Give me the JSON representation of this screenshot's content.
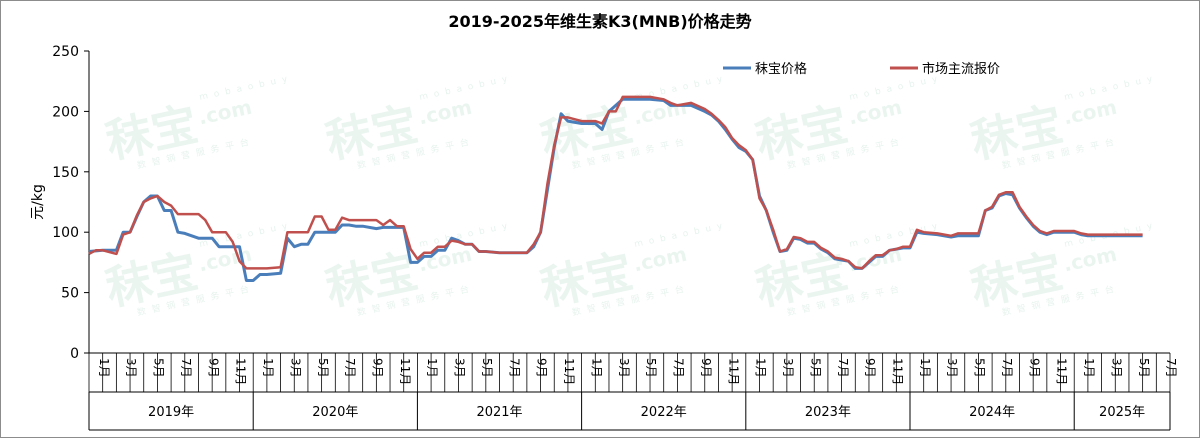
{
  "chart_data": {
    "type": "line",
    "title": "2019-2025年维生素K3(MNB)价格走势",
    "ylabel": "元/kg",
    "xlabel": "",
    "ylim": [
      0,
      250
    ],
    "yticks": [
      "0",
      "50",
      "100",
      "150",
      "200",
      "250"
    ],
    "grid": false,
    "legend_position": "top-right",
    "x_start": "2019-01",
    "x_end": "2025-07",
    "month_labels": [
      "1月",
      "3月",
      "5月",
      "7月",
      "9月",
      "11月"
    ],
    "years": [
      "2019年",
      "2020年",
      "2021年",
      "2022年",
      "2023年",
      "2024年",
      "2025年"
    ],
    "series": [
      {
        "name": "秣宝价格",
        "color": "#4a7ebb",
        "points": [
          [
            "2019-01",
            84
          ],
          [
            "2019-02",
            85
          ],
          [
            "2019-03",
            85
          ],
          [
            "2019-03.5",
            100
          ],
          [
            "2019-04",
            100
          ],
          [
            "2019-04.5",
            113
          ],
          [
            "2019-05",
            125
          ],
          [
            "2019-05.5",
            130
          ],
          [
            "2019-06",
            130
          ],
          [
            "2019-06.5",
            118
          ],
          [
            "2019-07",
            118
          ],
          [
            "2019-07.5",
            100
          ],
          [
            "2019-08",
            99
          ],
          [
            "2019-09",
            95
          ],
          [
            "2019-10",
            95
          ],
          [
            "2019-10.5",
            88
          ],
          [
            "2019-11",
            88
          ],
          [
            "2019-12",
            88
          ],
          [
            "2019-12.5",
            60
          ],
          [
            "2020-01",
            60
          ],
          [
            "2020-01.5",
            65
          ],
          [
            "2020-02",
            65
          ],
          [
            "2020-03",
            66
          ],
          [
            "2020-03.5",
            95
          ],
          [
            "2020-04",
            88
          ],
          [
            "2020-04.5",
            90
          ],
          [
            "2020-05",
            90
          ],
          [
            "2020-05.5",
            100
          ],
          [
            "2020-06",
            100
          ],
          [
            "2020-07",
            100
          ],
          [
            "2020-07.5",
            106
          ],
          [
            "2020-08",
            106
          ],
          [
            "2020-08.5",
            105
          ],
          [
            "2020-09",
            105
          ],
          [
            "2020-10",
            103
          ],
          [
            "2020-10.5",
            104
          ],
          [
            "2020-11",
            104
          ],
          [
            "2020-12",
            104
          ],
          [
            "2020-12.5",
            75
          ],
          [
            "2021-01",
            75
          ],
          [
            "2021-01.5",
            80
          ],
          [
            "2021-02",
            80
          ],
          [
            "2021-02.5",
            85
          ],
          [
            "2021-03",
            85
          ],
          [
            "2021-03.5",
            95
          ],
          [
            "2021-04",
            93
          ],
          [
            "2021-04.5",
            90
          ],
          [
            "2021-05",
            90
          ],
          [
            "2021-05.5",
            84
          ],
          [
            "2021-06",
            84
          ],
          [
            "2021-07",
            83
          ],
          [
            "2021-08",
            83
          ],
          [
            "2021-09",
            83
          ],
          [
            "2021-09.5",
            88
          ],
          [
            "2021-10",
            100
          ],
          [
            "2021-10.5",
            135
          ],
          [
            "2021-11",
            170
          ],
          [
            "2021-11.5",
            198
          ],
          [
            "2021-12",
            192
          ],
          [
            "2022-01",
            190
          ],
          [
            "2022-02",
            190
          ],
          [
            "2022-02.5",
            185
          ],
          [
            "2022-03",
            200
          ],
          [
            "2022-03.5",
            205
          ],
          [
            "2022-04",
            210
          ],
          [
            "2022-05",
            210
          ],
          [
            "2022-06",
            210
          ],
          [
            "2022-07",
            209
          ],
          [
            "2022-07.5",
            205
          ],
          [
            "2022-08",
            205
          ],
          [
            "2022-09",
            205
          ],
          [
            "2022-10",
            200
          ],
          [
            "2022-10.5",
            197
          ],
          [
            "2022-11",
            192
          ],
          [
            "2022-11.5",
            185
          ],
          [
            "2022-12",
            177
          ],
          [
            "2022-12.5",
            170
          ],
          [
            "2023-01",
            167
          ],
          [
            "2023-01.5",
            160
          ],
          [
            "2023-02",
            130
          ],
          [
            "2023-02.5",
            118
          ],
          [
            "2023-03",
            100
          ],
          [
            "2023-03.5",
            84
          ],
          [
            "2023-04",
            85
          ],
          [
            "2023-04.5",
            95
          ],
          [
            "2023-05",
            94
          ],
          [
            "2023-05.5",
            91
          ],
          [
            "2023-06",
            91
          ],
          [
            "2023-06.5",
            86
          ],
          [
            "2023-07",
            83
          ],
          [
            "2023-07.5",
            78
          ],
          [
            "2023-08",
            77
          ],
          [
            "2023-08.5",
            76
          ],
          [
            "2023-09",
            70
          ],
          [
            "2023-09.5",
            70
          ],
          [
            "2023-10",
            75
          ],
          [
            "2023-10.5",
            80
          ],
          [
            "2023-11",
            80
          ],
          [
            "2023-11.5",
            85
          ],
          [
            "2023-12",
            86
          ],
          [
            "2023-12.5",
            87
          ],
          [
            "2024-01",
            87
          ],
          [
            "2024-01.5",
            100
          ],
          [
            "2024-02",
            99
          ],
          [
            "2024-03",
            98
          ],
          [
            "2024-04",
            96
          ],
          [
            "2024-04.5",
            97
          ],
          [
            "2024-05",
            97
          ],
          [
            "2024-06",
            97
          ],
          [
            "2024-06.5",
            118
          ],
          [
            "2024-07",
            120
          ],
          [
            "2024-07.5",
            130
          ],
          [
            "2024-08",
            132
          ],
          [
            "2024-08.5",
            131
          ],
          [
            "2024-09",
            120
          ],
          [
            "2024-09.5",
            112
          ],
          [
            "2024-10",
            105
          ],
          [
            "2024-10.5",
            100
          ],
          [
            "2024-11",
            98
          ],
          [
            "2024-11.5",
            100
          ],
          [
            "2024-12",
            100
          ],
          [
            "2025-01",
            100
          ],
          [
            "2025-01.5",
            98
          ],
          [
            "2025-02",
            97
          ],
          [
            "2025-03",
            97
          ],
          [
            "2025-04",
            97
          ],
          [
            "2025-05",
            97
          ],
          [
            "2025-06",
            97
          ]
        ]
      },
      {
        "name": "市场主流报价",
        "color": "#c0504d",
        "points": [
          [
            "2019-01",
            82
          ],
          [
            "2019-01.5",
            85
          ],
          [
            "2019-02",
            85
          ],
          [
            "2019-03",
            82
          ],
          [
            "2019-03.5",
            98
          ],
          [
            "2019-04",
            100
          ],
          [
            "2019-04.5",
            114
          ],
          [
            "2019-05",
            125
          ],
          [
            "2019-05.5",
            128
          ],
          [
            "2019-06",
            130
          ],
          [
            "2019-06.5",
            125
          ],
          [
            "2019-07",
            122
          ],
          [
            "2019-07.5",
            115
          ],
          [
            "2019-08",
            115
          ],
          [
            "2019-09",
            115
          ],
          [
            "2019-09.5",
            110
          ],
          [
            "2019-10",
            100
          ],
          [
            "2019-11",
            100
          ],
          [
            "2019-11.5",
            92
          ],
          [
            "2019-12",
            76
          ],
          [
            "2019-12.5",
            70
          ],
          [
            "2020-01",
            70
          ],
          [
            "2020-02",
            70
          ],
          [
            "2020-03",
            71
          ],
          [
            "2020-03.5",
            100
          ],
          [
            "2020-04",
            100
          ],
          [
            "2020-05",
            100
          ],
          [
            "2020-05.5",
            113
          ],
          [
            "2020-06",
            113
          ],
          [
            "2020-06.5",
            102
          ],
          [
            "2020-07",
            102
          ],
          [
            "2020-07.5",
            112
          ],
          [
            "2020-08",
            110
          ],
          [
            "2020-09",
            110
          ],
          [
            "2020-10",
            110
          ],
          [
            "2020-10.5",
            106
          ],
          [
            "2020-11",
            110
          ],
          [
            "2020-11.5",
            105
          ],
          [
            "2020-12",
            105
          ],
          [
            "2020-12.5",
            86
          ],
          [
            "2021-01",
            78
          ],
          [
            "2021-01.5",
            83
          ],
          [
            "2021-02",
            83
          ],
          [
            "2021-02.5",
            88
          ],
          [
            "2021-03",
            88
          ],
          [
            "2021-03.5",
            93
          ],
          [
            "2021-04",
            92
          ],
          [
            "2021-04.5",
            90
          ],
          [
            "2021-05",
            90
          ],
          [
            "2021-05.5",
            84
          ],
          [
            "2021-06",
            84
          ],
          [
            "2021-07",
            83
          ],
          [
            "2021-08",
            83
          ],
          [
            "2021-09",
            83
          ],
          [
            "2021-09.5",
            90
          ],
          [
            "2021-10",
            100
          ],
          [
            "2021-10.5",
            140
          ],
          [
            "2021-11",
            172
          ],
          [
            "2021-11.5",
            195
          ],
          [
            "2021-12",
            195
          ],
          [
            "2022-01",
            192
          ],
          [
            "2022-02",
            192
          ],
          [
            "2022-02.5",
            190
          ],
          [
            "2022-03",
            200
          ],
          [
            "2022-03.5",
            200
          ],
          [
            "2022-04",
            212
          ],
          [
            "2022-05",
            212
          ],
          [
            "2022-06",
            212
          ],
          [
            "2022-07",
            210
          ],
          [
            "2022-07.5",
            207
          ],
          [
            "2022-08",
            205
          ],
          [
            "2022-09",
            207
          ],
          [
            "2022-10",
            202
          ],
          [
            "2022-10.5",
            198
          ],
          [
            "2022-11",
            193
          ],
          [
            "2022-11.5",
            187
          ],
          [
            "2022-12",
            178
          ],
          [
            "2022-12.5",
            172
          ],
          [
            "2023-01",
            168
          ],
          [
            "2023-01.5",
            160
          ],
          [
            "2023-02",
            128
          ],
          [
            "2023-02.5",
            118
          ],
          [
            "2023-03",
            102
          ],
          [
            "2023-03.5",
            84
          ],
          [
            "2023-04",
            86
          ],
          [
            "2023-04.5",
            96
          ],
          [
            "2023-05",
            95
          ],
          [
            "2023-05.5",
            92
          ],
          [
            "2023-06",
            92
          ],
          [
            "2023-06.5",
            87
          ],
          [
            "2023-07",
            84
          ],
          [
            "2023-07.5",
            79
          ],
          [
            "2023-08",
            78
          ],
          [
            "2023-08.5",
            76
          ],
          [
            "2023-09",
            71
          ],
          [
            "2023-09.5",
            70
          ],
          [
            "2023-10",
            76
          ],
          [
            "2023-10.5",
            81
          ],
          [
            "2023-11",
            81
          ],
          [
            "2023-11.5",
            85
          ],
          [
            "2023-12",
            86
          ],
          [
            "2023-12.5",
            88
          ],
          [
            "2024-01",
            88
          ],
          [
            "2024-01.5",
            102
          ],
          [
            "2024-02",
            100
          ],
          [
            "2024-03",
            99
          ],
          [
            "2024-04",
            97
          ],
          [
            "2024-04.5",
            99
          ],
          [
            "2024-05",
            99
          ],
          [
            "2024-06",
            99
          ],
          [
            "2024-06.5",
            118
          ],
          [
            "2024-07",
            121
          ],
          [
            "2024-07.5",
            131
          ],
          [
            "2024-08",
            133
          ],
          [
            "2024-08.5",
            133
          ],
          [
            "2024-09",
            121
          ],
          [
            "2024-09.5",
            113
          ],
          [
            "2024-10",
            106
          ],
          [
            "2024-10.5",
            101
          ],
          [
            "2024-11",
            99
          ],
          [
            "2024-11.5",
            101
          ],
          [
            "2024-12",
            101
          ],
          [
            "2025-01",
            101
          ],
          [
            "2025-01.5",
            99
          ],
          [
            "2025-02",
            98
          ],
          [
            "2025-03",
            98
          ],
          [
            "2025-04",
            98
          ],
          [
            "2025-05",
            98
          ],
          [
            "2025-06",
            98
          ]
        ]
      }
    ]
  },
  "watermark": {
    "brand": "秣宝",
    "domain": ".com",
    "site": "mobaobuy",
    "slogan": "数智钢营服务平台"
  }
}
